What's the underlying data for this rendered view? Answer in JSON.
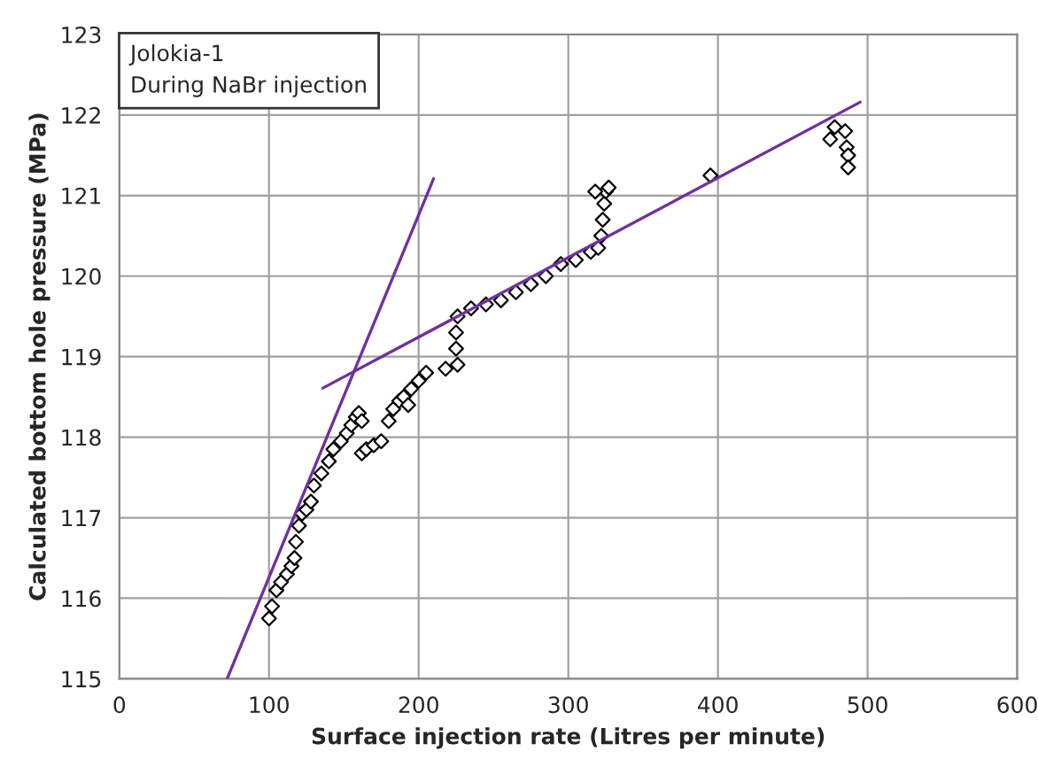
{
  "chart_data": {
    "type": "scatter",
    "xlabel": "Surface injection rate (Litres per minute)",
    "ylabel": "Calculated bottom hole pressure (MPa)",
    "annotations": [
      "Jolokia-1",
      "During NaBr injection"
    ],
    "xlim": [
      0,
      600
    ],
    "xticks": [
      0,
      100,
      200,
      300,
      400,
      500,
      600
    ],
    "ylim": [
      115,
      123
    ],
    "yticks": [
      115,
      116,
      117,
      118,
      119,
      120,
      121,
      122,
      123
    ],
    "grid": true,
    "legend": false,
    "marker": "diamond",
    "series": [
      {
        "color": "#000000",
        "x": [
          100,
          102,
          105,
          108,
          112,
          115,
          117,
          118,
          120,
          122,
          125,
          128,
          130,
          135,
          140,
          143,
          148,
          152,
          155,
          158,
          160,
          162,
          162,
          165,
          170,
          175,
          180,
          183,
          187,
          190,
          193,
          195,
          200,
          205,
          218,
          226,
          225,
          225,
          226,
          235,
          245,
          255,
          265,
          275,
          285,
          295,
          305,
          315,
          320,
          322,
          323,
          324,
          325,
          327,
          318,
          395,
          475,
          478,
          485,
          486,
          487,
          487
        ],
        "values": [
          115.75,
          115.9,
          116.1,
          116.2,
          116.3,
          116.4,
          116.5,
          116.7,
          116.9,
          117.05,
          117.1,
          117.2,
          117.4,
          117.55,
          117.7,
          117.85,
          117.95,
          118.05,
          118.15,
          118.25,
          118.3,
          118.2,
          117.8,
          117.85,
          117.9,
          117.95,
          118.2,
          118.35,
          118.45,
          118.5,
          118.4,
          118.6,
          118.7,
          118.8,
          118.85,
          118.9,
          119.1,
          119.3,
          119.5,
          119.6,
          119.65,
          119.7,
          119.8,
          119.9,
          120.0,
          120.15,
          120.2,
          120.3,
          120.35,
          120.5,
          120.7,
          120.9,
          121.05,
          121.1,
          121.05,
          121.25,
          121.7,
          121.85,
          121.8,
          121.6,
          121.5,
          121.35
        ]
      },
      {
        "type": "line",
        "color": "#7030a0",
        "marker": "none",
        "x": [
          72,
          210
        ],
        "values": [
          115,
          121.21
        ]
      },
      {
        "type": "line",
        "color": "#7030a0",
        "marker": "none",
        "x": [
          136,
          495
        ],
        "values": [
          118.61,
          122.16
        ]
      }
    ]
  }
}
